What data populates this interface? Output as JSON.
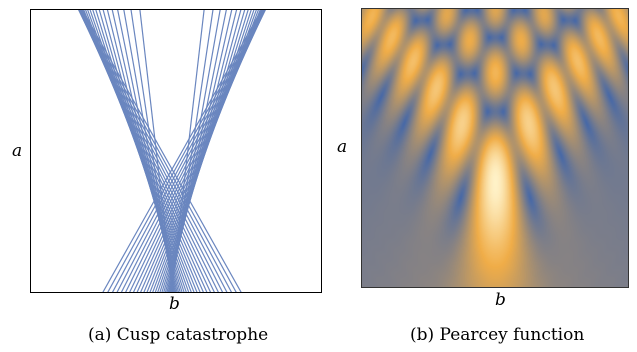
{
  "figure": {
    "panel_a": {
      "caption": "(a) Cusp catastrophe",
      "x_label": "b",
      "y_label": "a",
      "ray_color": "#6a86bf"
    },
    "panel_b": {
      "caption": "(b) Pearcey function",
      "x_label": "b",
      "y_label": "a",
      "colormap": [
        "#4668a8",
        "#f0ad48",
        "#fff2c8"
      ]
    }
  }
}
